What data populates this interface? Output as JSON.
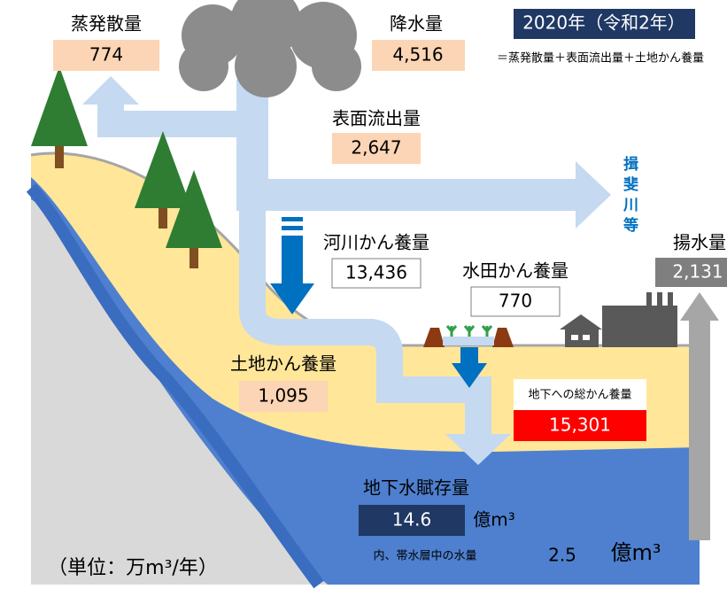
{
  "year_badge": "2020年（令和2年）",
  "evapotranspiration": {
    "label": "蒸発散量",
    "value": "774"
  },
  "precipitation": {
    "label": "降水量",
    "value": "4,516",
    "note": "＝蒸発散量＋表面流出量＋土地かん養量"
  },
  "surface_runoff": {
    "label": "表面流出量",
    "value": "2,647"
  },
  "river_name": "揖斐川等",
  "river_recharge": {
    "label": "河川かん養量",
    "value": "13,436"
  },
  "paddy_recharge": {
    "label": "水田かん養量",
    "value": "770"
  },
  "pumping": {
    "label": "揚水量",
    "value": "2,131"
  },
  "land_recharge": {
    "label": "土地かん養量",
    "value": "1,095"
  },
  "total_recharge": {
    "label": "地下への総かん養量",
    "value": "15,301"
  },
  "groundwater_storage": {
    "label": "地下水賦存量",
    "value": "14.6",
    "unit": "億m³"
  },
  "aquifer_water": {
    "label": "内、帯水層中の水量",
    "value": "2.5",
    "unit": "億m³"
  },
  "unit_note": "（単位：万m³/年）"
}
